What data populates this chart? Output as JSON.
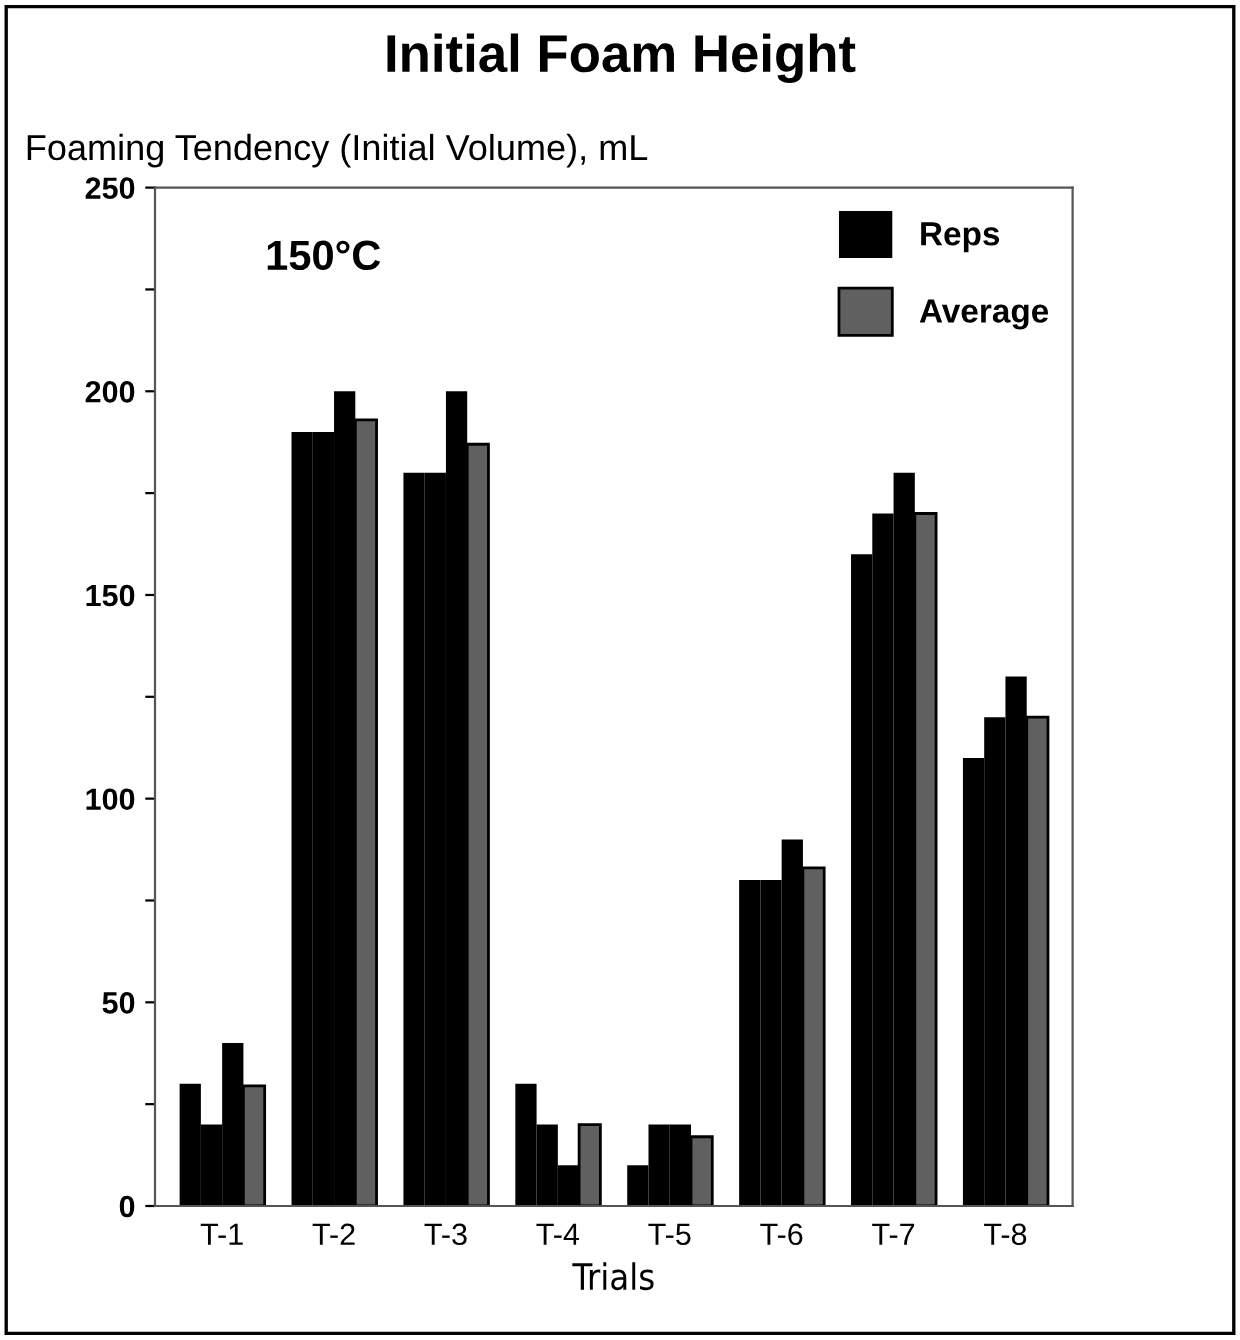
{
  "chart_data": {
    "type": "bar",
    "title": "Initial Foam Height",
    "ylabel": "Foaming Tendency (Initial Volume), mL",
    "xlabel": "Trials",
    "categories": [
      "T-1",
      "T-2",
      "T-3",
      "T-4",
      "T-5",
      "T-6",
      "T-7",
      "T-8"
    ],
    "series": [
      {
        "name": "Reps",
        "color": "#000000",
        "values": [
          30,
          190,
          180,
          30,
          10,
          80,
          160,
          110
        ]
      },
      {
        "color": "#000000",
        "values": [
          20,
          190,
          180,
          20,
          20,
          80,
          170,
          120
        ]
      },
      {
        "color": "#000000",
        "values": [
          40,
          200,
          200,
          10,
          20,
          90,
          180,
          130
        ]
      },
      {
        "name": "Average",
        "color": "#606060",
        "values": [
          29.5,
          193,
          187,
          20,
          17,
          83,
          170,
          120
        ]
      }
    ],
    "ylim": [
      0,
      250
    ],
    "yticks": [
      0,
      {
        "value": 25,
        "label": null
      },
      50,
      {
        "value": 75,
        "label": null
      },
      100,
      {
        "value": 125,
        "label": null
      },
      150,
      {
        "value": 175,
        "label": null
      },
      200,
      {
        "value": 225,
        "label": null
      },
      250
    ],
    "annotations": [
      "150°C"
    ],
    "grid": false,
    "legend": "top right"
  }
}
